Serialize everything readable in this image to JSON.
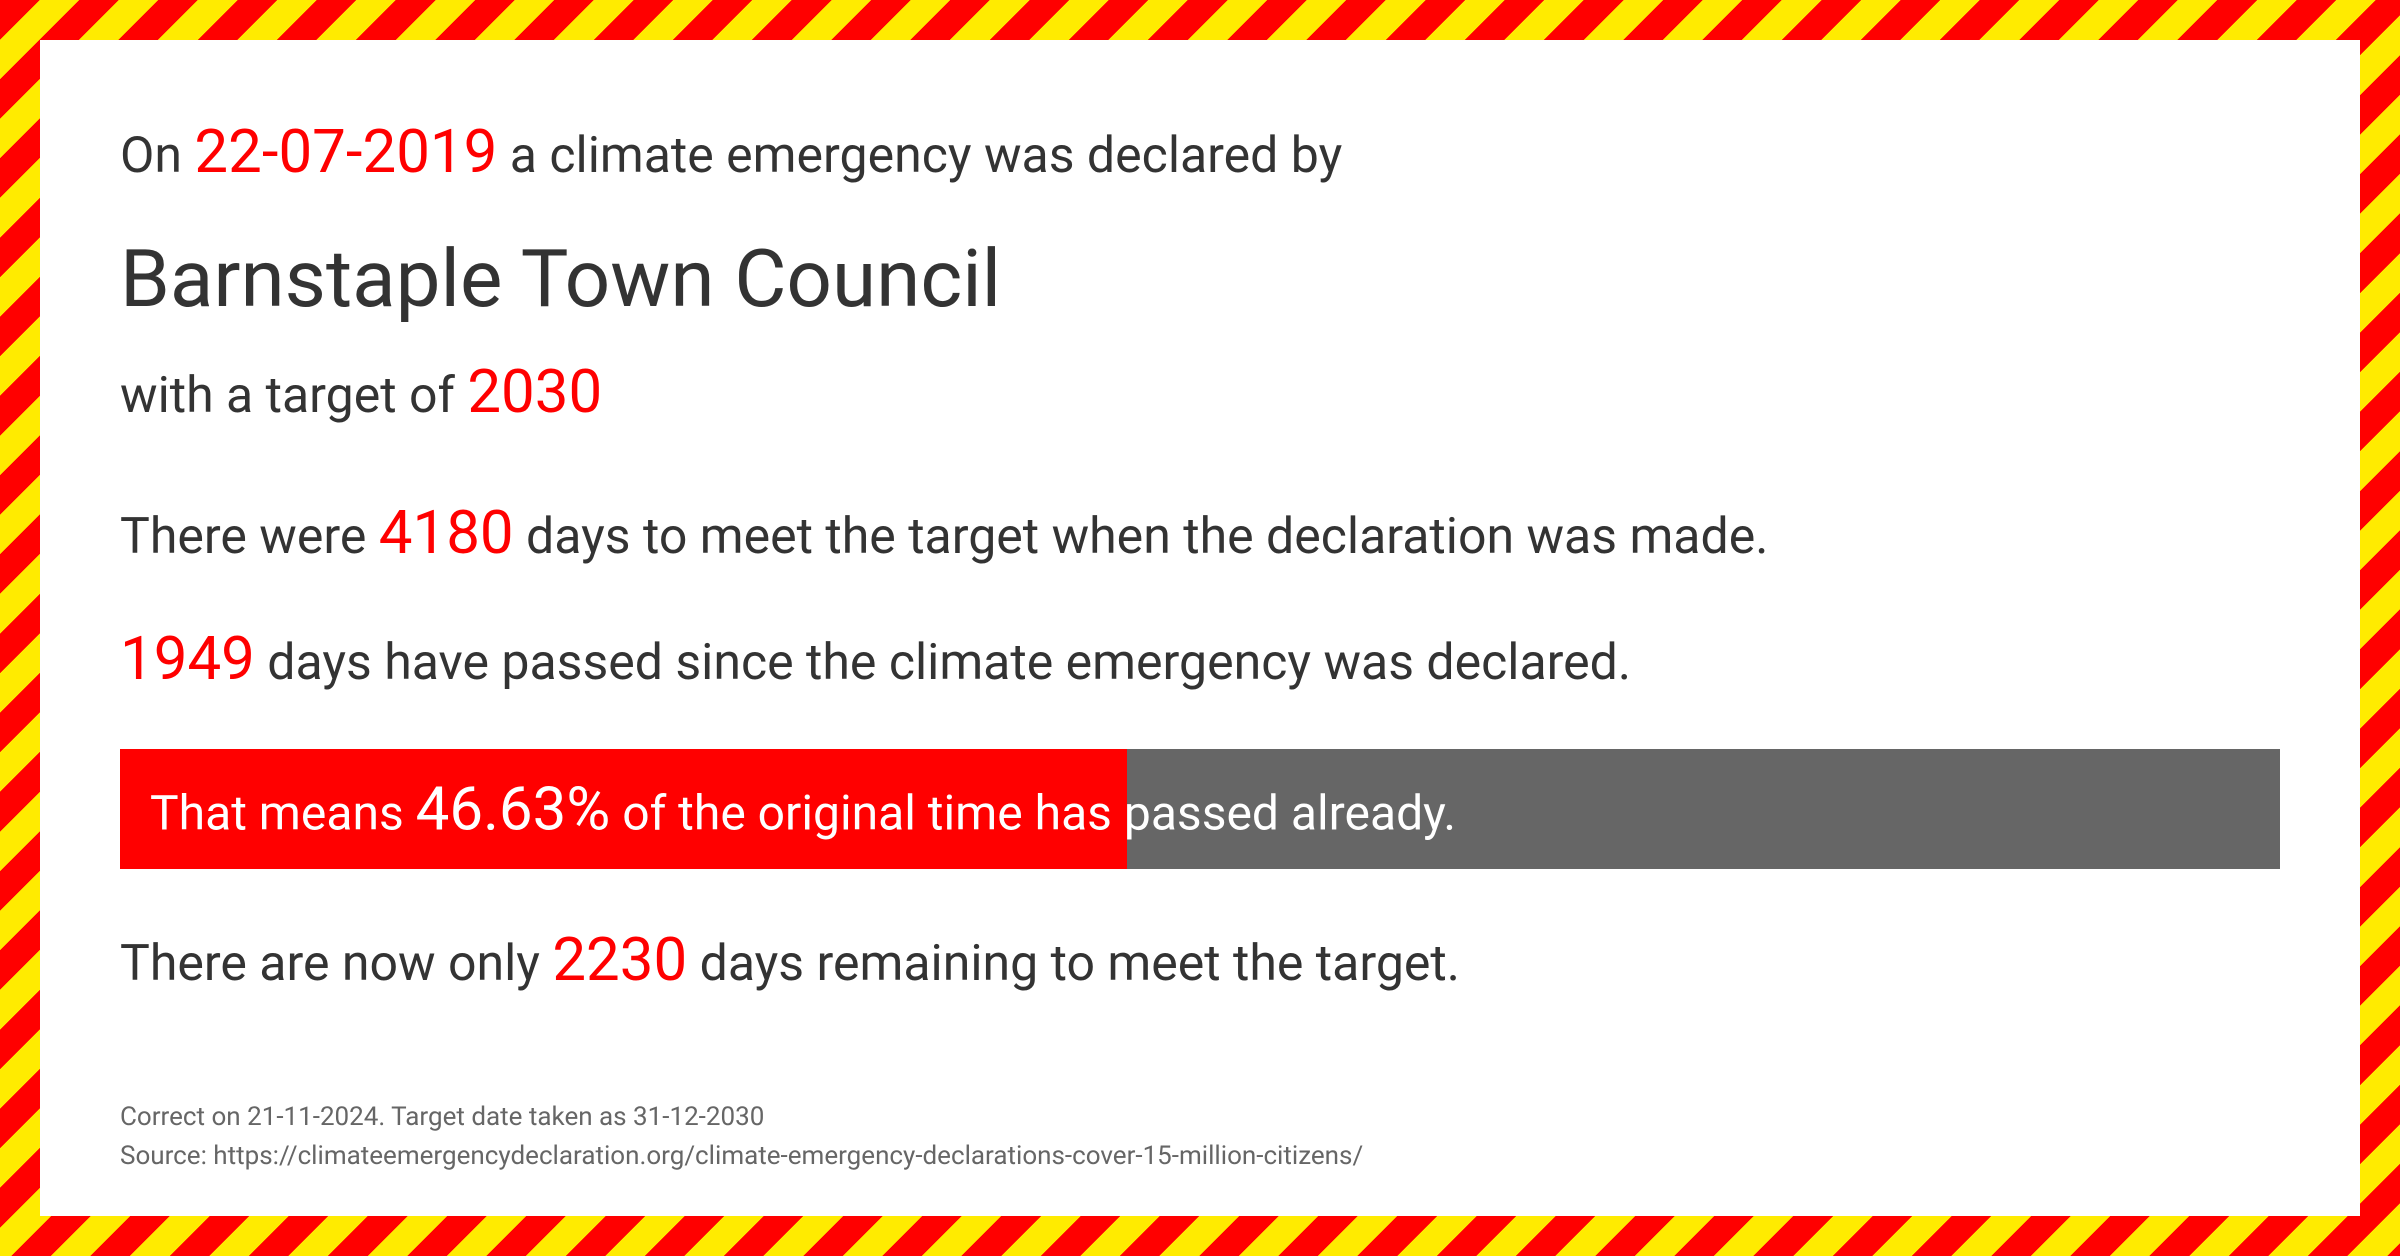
{
  "colors": {
    "highlight": "#ff0000",
    "text": "#333333",
    "stripe_red": "#ff0000",
    "stripe_yellow": "#ffeb00",
    "bar_bg": "#666666",
    "bar_fill": "#ff0000",
    "bar_text": "#ffffff",
    "footer_text": "#666666",
    "background": "#ffffff"
  },
  "header": {
    "prefix": "On ",
    "date": "22-07-2019",
    "suffix": " a climate emergency was declared by"
  },
  "council": "Barnstaple Town Council",
  "target": {
    "prefix": "with a target of  ",
    "year": "2030"
  },
  "days_total": {
    "prefix": "There were ",
    "value": "4180",
    "suffix": "  days to meet the target when the declaration was made."
  },
  "days_passed": {
    "value": "1949",
    "suffix": " days have passed since the climate emergency was declared."
  },
  "progress": {
    "prefix": "That means ",
    "percent_text": "46.63%",
    "percent_value": 46.63,
    "suffix": " of the original time has passed already."
  },
  "days_remaining": {
    "prefix": "There are now only ",
    "value": "2230",
    "suffix": " days remaining to meet the target."
  },
  "footer": {
    "line1": "Correct on 21-11-2024. Target date taken as 31-12-2030",
    "line2": "Source: https://climateemergencydeclaration.org/climate-emergency-declarations-cover-15-million-citizens/"
  }
}
